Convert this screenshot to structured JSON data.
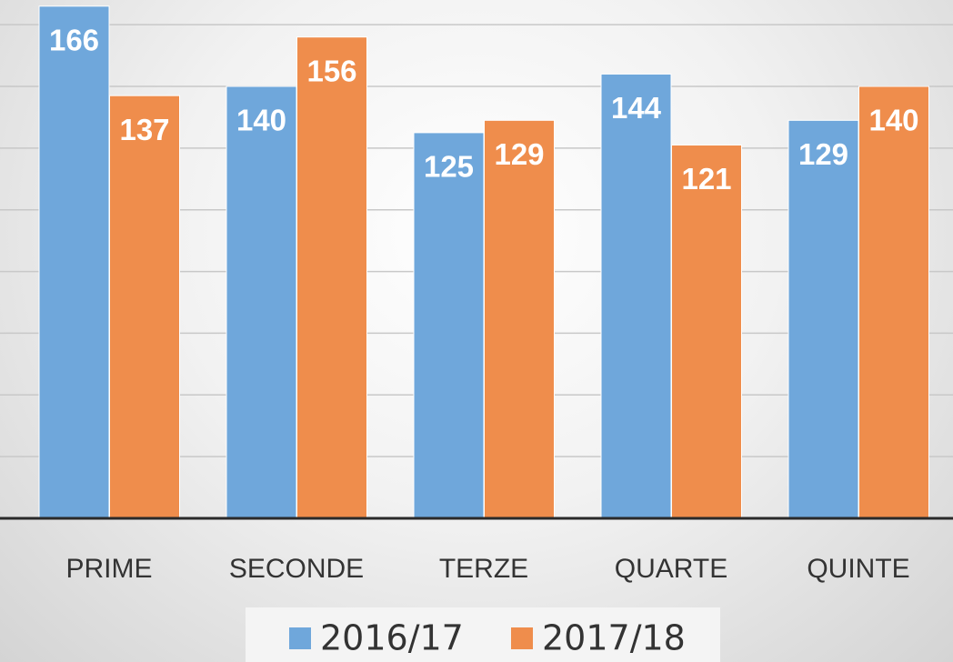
{
  "chart_data": {
    "type": "bar",
    "categories": [
      "PRIME",
      "SECONDE",
      "TERZE",
      "QUARTE",
      "QUINTE"
    ],
    "series": [
      {
        "name": "2016/17",
        "color": "#6fa7db",
        "values": [
          166,
          140,
          125,
          144,
          129
        ]
      },
      {
        "name": "2017/18",
        "color": "#ef8d4c",
        "values": [
          137,
          156,
          129,
          121,
          140
        ]
      }
    ],
    "ylim": [
      0,
      168
    ],
    "yticks": [
      0,
      20,
      40,
      60,
      80,
      100,
      120,
      140,
      160
    ],
    "grid": true
  }
}
